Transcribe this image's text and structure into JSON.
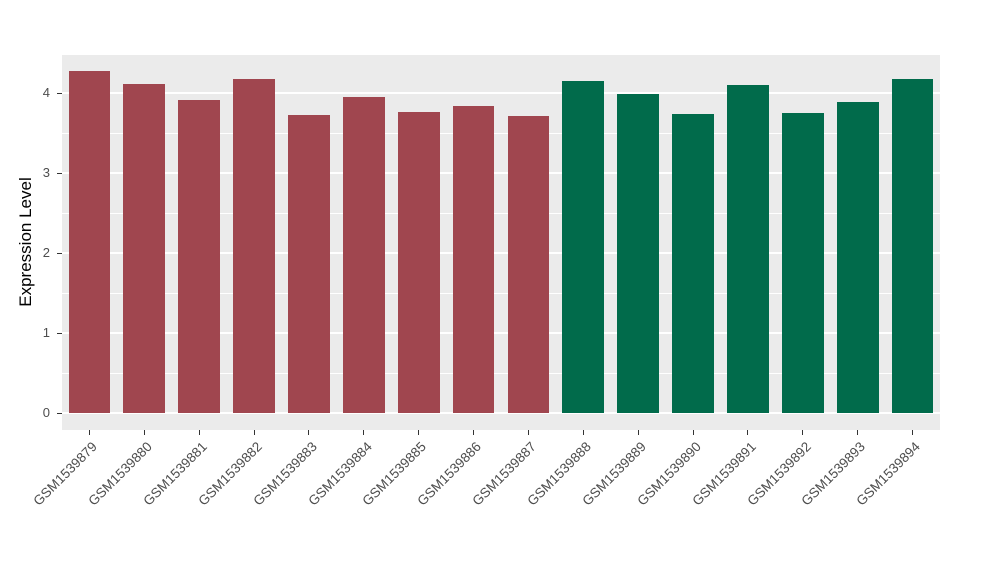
{
  "chart_data": {
    "type": "bar",
    "title": "",
    "xlabel": "",
    "ylabel": "Expression Level",
    "categories": [
      "GSM1539879",
      "GSM1539880",
      "GSM1539881",
      "GSM1539882",
      "GSM1539883",
      "GSM1539884",
      "GSM1539885",
      "GSM1539886",
      "GSM1539887",
      "GSM1539888",
      "GSM1539889",
      "GSM1539890",
      "GSM1539891",
      "GSM1539892",
      "GSM1539893",
      "GSM1539894"
    ],
    "values": [
      4.27,
      4.11,
      3.91,
      4.18,
      3.72,
      3.95,
      3.76,
      3.84,
      3.71,
      4.15,
      3.99,
      3.74,
      4.1,
      3.75,
      3.89,
      4.17
    ],
    "groups": [
      "group1",
      "group1",
      "group1",
      "group1",
      "group1",
      "group1",
      "group1",
      "group1",
      "group1",
      "group2",
      "group2",
      "group2",
      "group2",
      "group2",
      "group2",
      "group2"
    ],
    "group_colors": {
      "group1": "#A0464F",
      "group2": "#016B4B"
    },
    "ylim": [
      -0.2125,
      4.475
    ],
    "yticks": [
      0,
      1,
      2,
      3,
      4
    ],
    "minor_gridlines": [
      0.5,
      1.5,
      2.5,
      3.5
    ],
    "panel_bg": "#EBEBEB",
    "grid_color": "#FFFFFF",
    "tick_label_color": "#4D4D4D",
    "legend_position": "none"
  }
}
